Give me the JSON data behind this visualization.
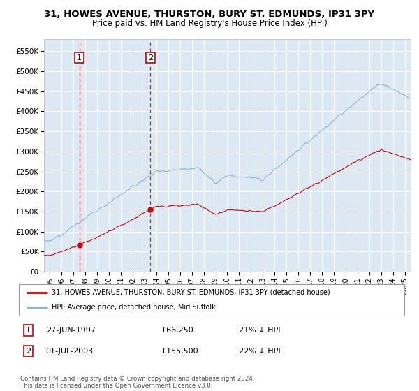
{
  "title1": "31, HOWES AVENUE, THURSTON, BURY ST. EDMUNDS, IP31 3PY",
  "title2": "Price paid vs. HM Land Registry's House Price Index (HPI)",
  "ylim": [
    0,
    580000
  ],
  "yticks": [
    0,
    50000,
    100000,
    150000,
    200000,
    250000,
    300000,
    350000,
    400000,
    450000,
    500000,
    550000
  ],
  "ytick_labels": [
    "£0",
    "£50K",
    "£100K",
    "£150K",
    "£200K",
    "£250K",
    "£300K",
    "£350K",
    "£400K",
    "£450K",
    "£500K",
    "£550K"
  ],
  "xlim_start": 1994.5,
  "xlim_end": 2025.5,
  "plot_bg_color": "#dce9f5",
  "grid_color": "#ffffff",
  "sale1_x": 1997.49,
  "sale1_y": 66250,
  "sale2_x": 2003.5,
  "sale2_y": 155500,
  "sale_color": "#cc0000",
  "hpi_color": "#7fb0d8",
  "legend_label_red": "31, HOWES AVENUE, THURSTON, BURY ST. EDMUNDS, IP31 3PY (detached house)",
  "legend_label_blue": "HPI: Average price, detached house, Mid Suffolk",
  "table_row1": [
    "1",
    "27-JUN-1997",
    "£66,250",
    "21% ↓ HPI"
  ],
  "table_row2": [
    "2",
    "01-JUL-2003",
    "£155,500",
    "22% ↓ HPI"
  ],
  "footer": "Contains HM Land Registry data © Crown copyright and database right 2024.\nThis data is licensed under the Open Government Licence v3.0.",
  "xtick_years": [
    1995,
    1996,
    1997,
    1998,
    1999,
    2000,
    2001,
    2002,
    2003,
    2004,
    2005,
    2006,
    2007,
    2008,
    2009,
    2010,
    2011,
    2012,
    2013,
    2014,
    2015,
    2016,
    2017,
    2018,
    2019,
    2020,
    2021,
    2022,
    2023,
    2024,
    2025
  ]
}
